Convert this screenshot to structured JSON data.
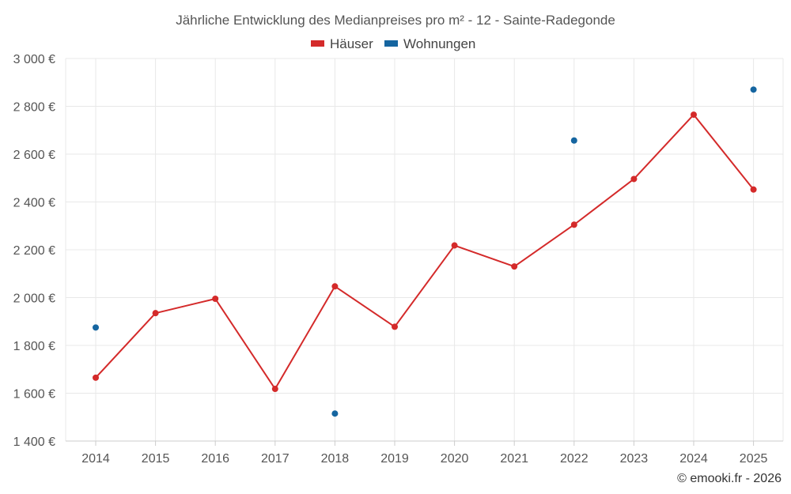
{
  "chart_data": {
    "type": "line",
    "title": "Jährliche Entwicklung des Medianpreises pro m² - 12 - Sainte-Radegonde",
    "categories": [
      "2014",
      "2015",
      "2016",
      "2017",
      "2018",
      "2019",
      "2020",
      "2021",
      "2022",
      "2023",
      "2024",
      "2025"
    ],
    "ylim": [
      1400,
      3000
    ],
    "yticks": [
      1400,
      1600,
      1800,
      2000,
      2200,
      2400,
      2600,
      2800,
      3000
    ],
    "ytick_labels": [
      "1 400 €",
      "1 600 €",
      "1 800 €",
      "2 000 €",
      "2 200 €",
      "2 400 €",
      "2 600 €",
      "2 800 €",
      "3 000 €"
    ],
    "grid": true,
    "legend_position": "top-center",
    "series": [
      {
        "name": "Häuser",
        "color": "#d42a2a",
        "mode": "line+markers",
        "values": [
          1665,
          1935,
          1995,
          1618,
          2047,
          1878,
          2218,
          2130,
          2305,
          2496,
          2765,
          2452
        ]
      },
      {
        "name": "Wohnungen",
        "color": "#1565a0",
        "mode": "markers",
        "values": [
          1875,
          null,
          null,
          null,
          1515,
          null,
          null,
          null,
          2657,
          null,
          null,
          2870
        ]
      }
    ],
    "credit": "© emooki.fr - 2026"
  }
}
